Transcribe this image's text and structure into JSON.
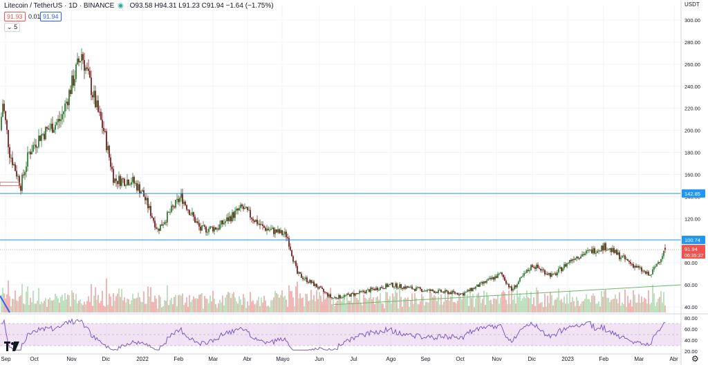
{
  "header": {
    "symbol": "Litecoin / TetherUS · 1D · BINANCE",
    "ohlc": "O93.58 H94.31 L91.23 C91.94 −1.64 (−1.75%)",
    "sell_price": "91.93",
    "spread": "0.01",
    "buy_price": "91.94",
    "collapse_label": "5",
    "currency": "USDT"
  },
  "price_axis": {
    "labels": [
      "300.00",
      "280.00",
      "260.00",
      "240.00",
      "220.00",
      "200.00",
      "180.00",
      "160.00",
      "140.00",
      "120.00",
      "100.00",
      "80.00",
      "60.00",
      "40.00"
    ],
    "badges": {
      "level_high": "142.85",
      "level_low": "100.74",
      "last_price": "91.94",
      "countdown": "06:35:37"
    }
  },
  "rsi_axis": {
    "labels": [
      "80.00",
      "60.00",
      "40.00",
      "20.00"
    ]
  },
  "time_axis": {
    "labels": [
      "Sep",
      "Oct",
      "Nov",
      "Dic",
      "2022",
      "Feb",
      "Mar",
      "Abr",
      "Mayo",
      "Jun",
      "Jul",
      "Ago",
      "Sep",
      "Oct",
      "Nov",
      "Dic",
      "2023",
      "Feb",
      "Mar",
      "Abr"
    ]
  },
  "colors": {
    "up": "#26a69a",
    "down": "#ef5350",
    "candle_body_up": "#2e7d32",
    "candle_body_down": "#7b1f1f",
    "hline": "#2196f3",
    "trend": "#66bb6a",
    "rsi": "#7e57c2",
    "rsi_band": "#e1bee7",
    "grid": "#f0f3fa"
  },
  "chart_data": {
    "type": "candlestick",
    "symbol": "LTCUSDT",
    "interval": "1D",
    "x_labels": [
      "Sep",
      "Oct",
      "Nov",
      "Dic",
      "2022",
      "Feb",
      "Mar",
      "Abr",
      "Mayo",
      "Jun",
      "Jul",
      "Ago",
      "Sep",
      "Oct",
      "Nov",
      "Dic",
      "2023",
      "Feb",
      "Mar",
      "Abr"
    ],
    "ylim": [
      30,
      305
    ],
    "yticks": [
      300,
      280,
      260,
      240,
      220,
      200,
      180,
      160,
      140,
      120,
      100,
      80,
      60,
      40
    ],
    "close_anchors": [
      {
        "x": "Sep 2021",
        "y": 200
      },
      {
        "x": "Sep 2021",
        "y": 225
      },
      {
        "x": "Sep 2021",
        "y": 180
      },
      {
        "x": "Oct 2021",
        "y": 150
      },
      {
        "x": "Oct 2021",
        "y": 180
      },
      {
        "x": "Oct 2021",
        "y": 195
      },
      {
        "x": "Nov 2021",
        "y": 210
      },
      {
        "x": "Nov 2021",
        "y": 270
      },
      {
        "x": "Nov 2021",
        "y": 220
      },
      {
        "x": "Dic 2021",
        "y": 200
      },
      {
        "x": "Dic 2021",
        "y": 155
      },
      {
        "x": "2022",
        "y": 155
      },
      {
        "x": "2022",
        "y": 145
      },
      {
        "x": "Feb 2022",
        "y": 110
      },
      {
        "x": "Feb 2022",
        "y": 140
      },
      {
        "x": "Mar 2022",
        "y": 110
      },
      {
        "x": "Mar 2022",
        "y": 112
      },
      {
        "x": "Abr 2022",
        "y": 130
      },
      {
        "x": "Abr 2022",
        "y": 112
      },
      {
        "x": "Mayo 2022",
        "y": 105
      },
      {
        "x": "Mayo 2022",
        "y": 70
      },
      {
        "x": "Jun 2022",
        "y": 60
      },
      {
        "x": "Jun 2022",
        "y": 48
      },
      {
        "x": "Jul 2022",
        "y": 52
      },
      {
        "x": "Ago 2022",
        "y": 60
      },
      {
        "x": "Sep 2022",
        "y": 55
      },
      {
        "x": "Oct 2022",
        "y": 52
      },
      {
        "x": "Nov 2022",
        "y": 70
      },
      {
        "x": "Nov 2022",
        "y": 55
      },
      {
        "x": "Dic 2022",
        "y": 78
      },
      {
        "x": "Dic 2022",
        "y": 68
      },
      {
        "x": "2023",
        "y": 85
      },
      {
        "x": "Feb 2023",
        "y": 95
      },
      {
        "x": "Mar 2023",
        "y": 68
      },
      {
        "x": "Mar 2023",
        "y": 91.94
      }
    ],
    "horizontal_levels": [
      142.85,
      100.74
    ],
    "trendline": {
      "from": {
        "x": "Jun 2022",
        "y": 42
      },
      "to": {
        "x": "Abr 2023",
        "y": 60
      }
    },
    "last": {
      "open": 93.58,
      "high": 94.31,
      "low": 91.23,
      "close": 91.94,
      "change": -1.64,
      "change_pct": -1.75
    },
    "volume": true,
    "rsi": {
      "period": null,
      "band": [
        30,
        70
      ],
      "ylim": [
        20,
        85
      ],
      "yticks": [
        80,
        60,
        40,
        20
      ]
    }
  }
}
